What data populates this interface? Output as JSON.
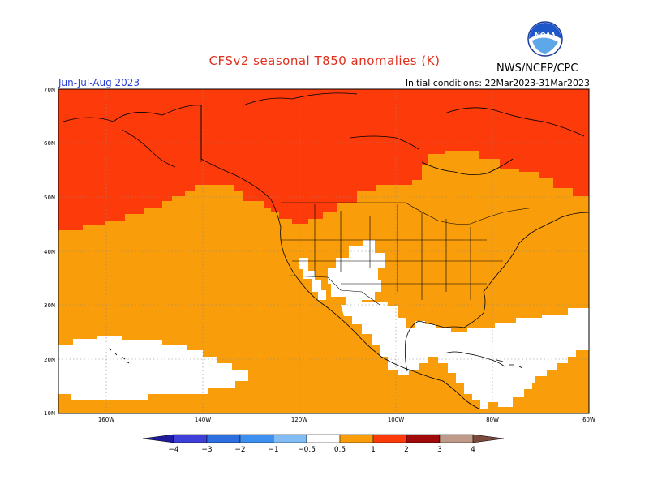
{
  "header": {
    "title": "CFSv2 seasonal T850 anomalies (K)",
    "agency": "NWS/NCEP/CPC",
    "logo_text": "NOAA",
    "season": "Jun-Jul-Aug 2023",
    "initial_conditions": "Initial conditions: 22Mar2023-31Mar2023"
  },
  "map": {
    "lat_labels": [
      "70N",
      "60N",
      "50N",
      "40N",
      "30N",
      "20N",
      "10N"
    ],
    "lon_labels": [
      "160W",
      "140W",
      "120W",
      "100W",
      "80W",
      "60W"
    ],
    "lat_range": [
      10,
      70
    ],
    "lon_range": [
      -170,
      -60
    ],
    "colors": {
      "band_0_5_1": "#f99d0a",
      "band_1_2": "#fd3a0a",
      "near_zero": "#ffffff",
      "coast": "#000000"
    }
  },
  "colorbar": {
    "labels": [
      "-4",
      "-3",
      "-2",
      "-1",
      "-0.5",
      "0.5",
      "1",
      "2",
      "3",
      "4"
    ],
    "colors": [
      "#1f1a9e",
      "#3d3fd6",
      "#2e6fe0",
      "#3d8ff0",
      "#82bcf5",
      "#ffffff",
      "#f99d0a",
      "#fd3a0a",
      "#a00a0a",
      "#c09a88",
      "#7a4a3c"
    ]
  }
}
